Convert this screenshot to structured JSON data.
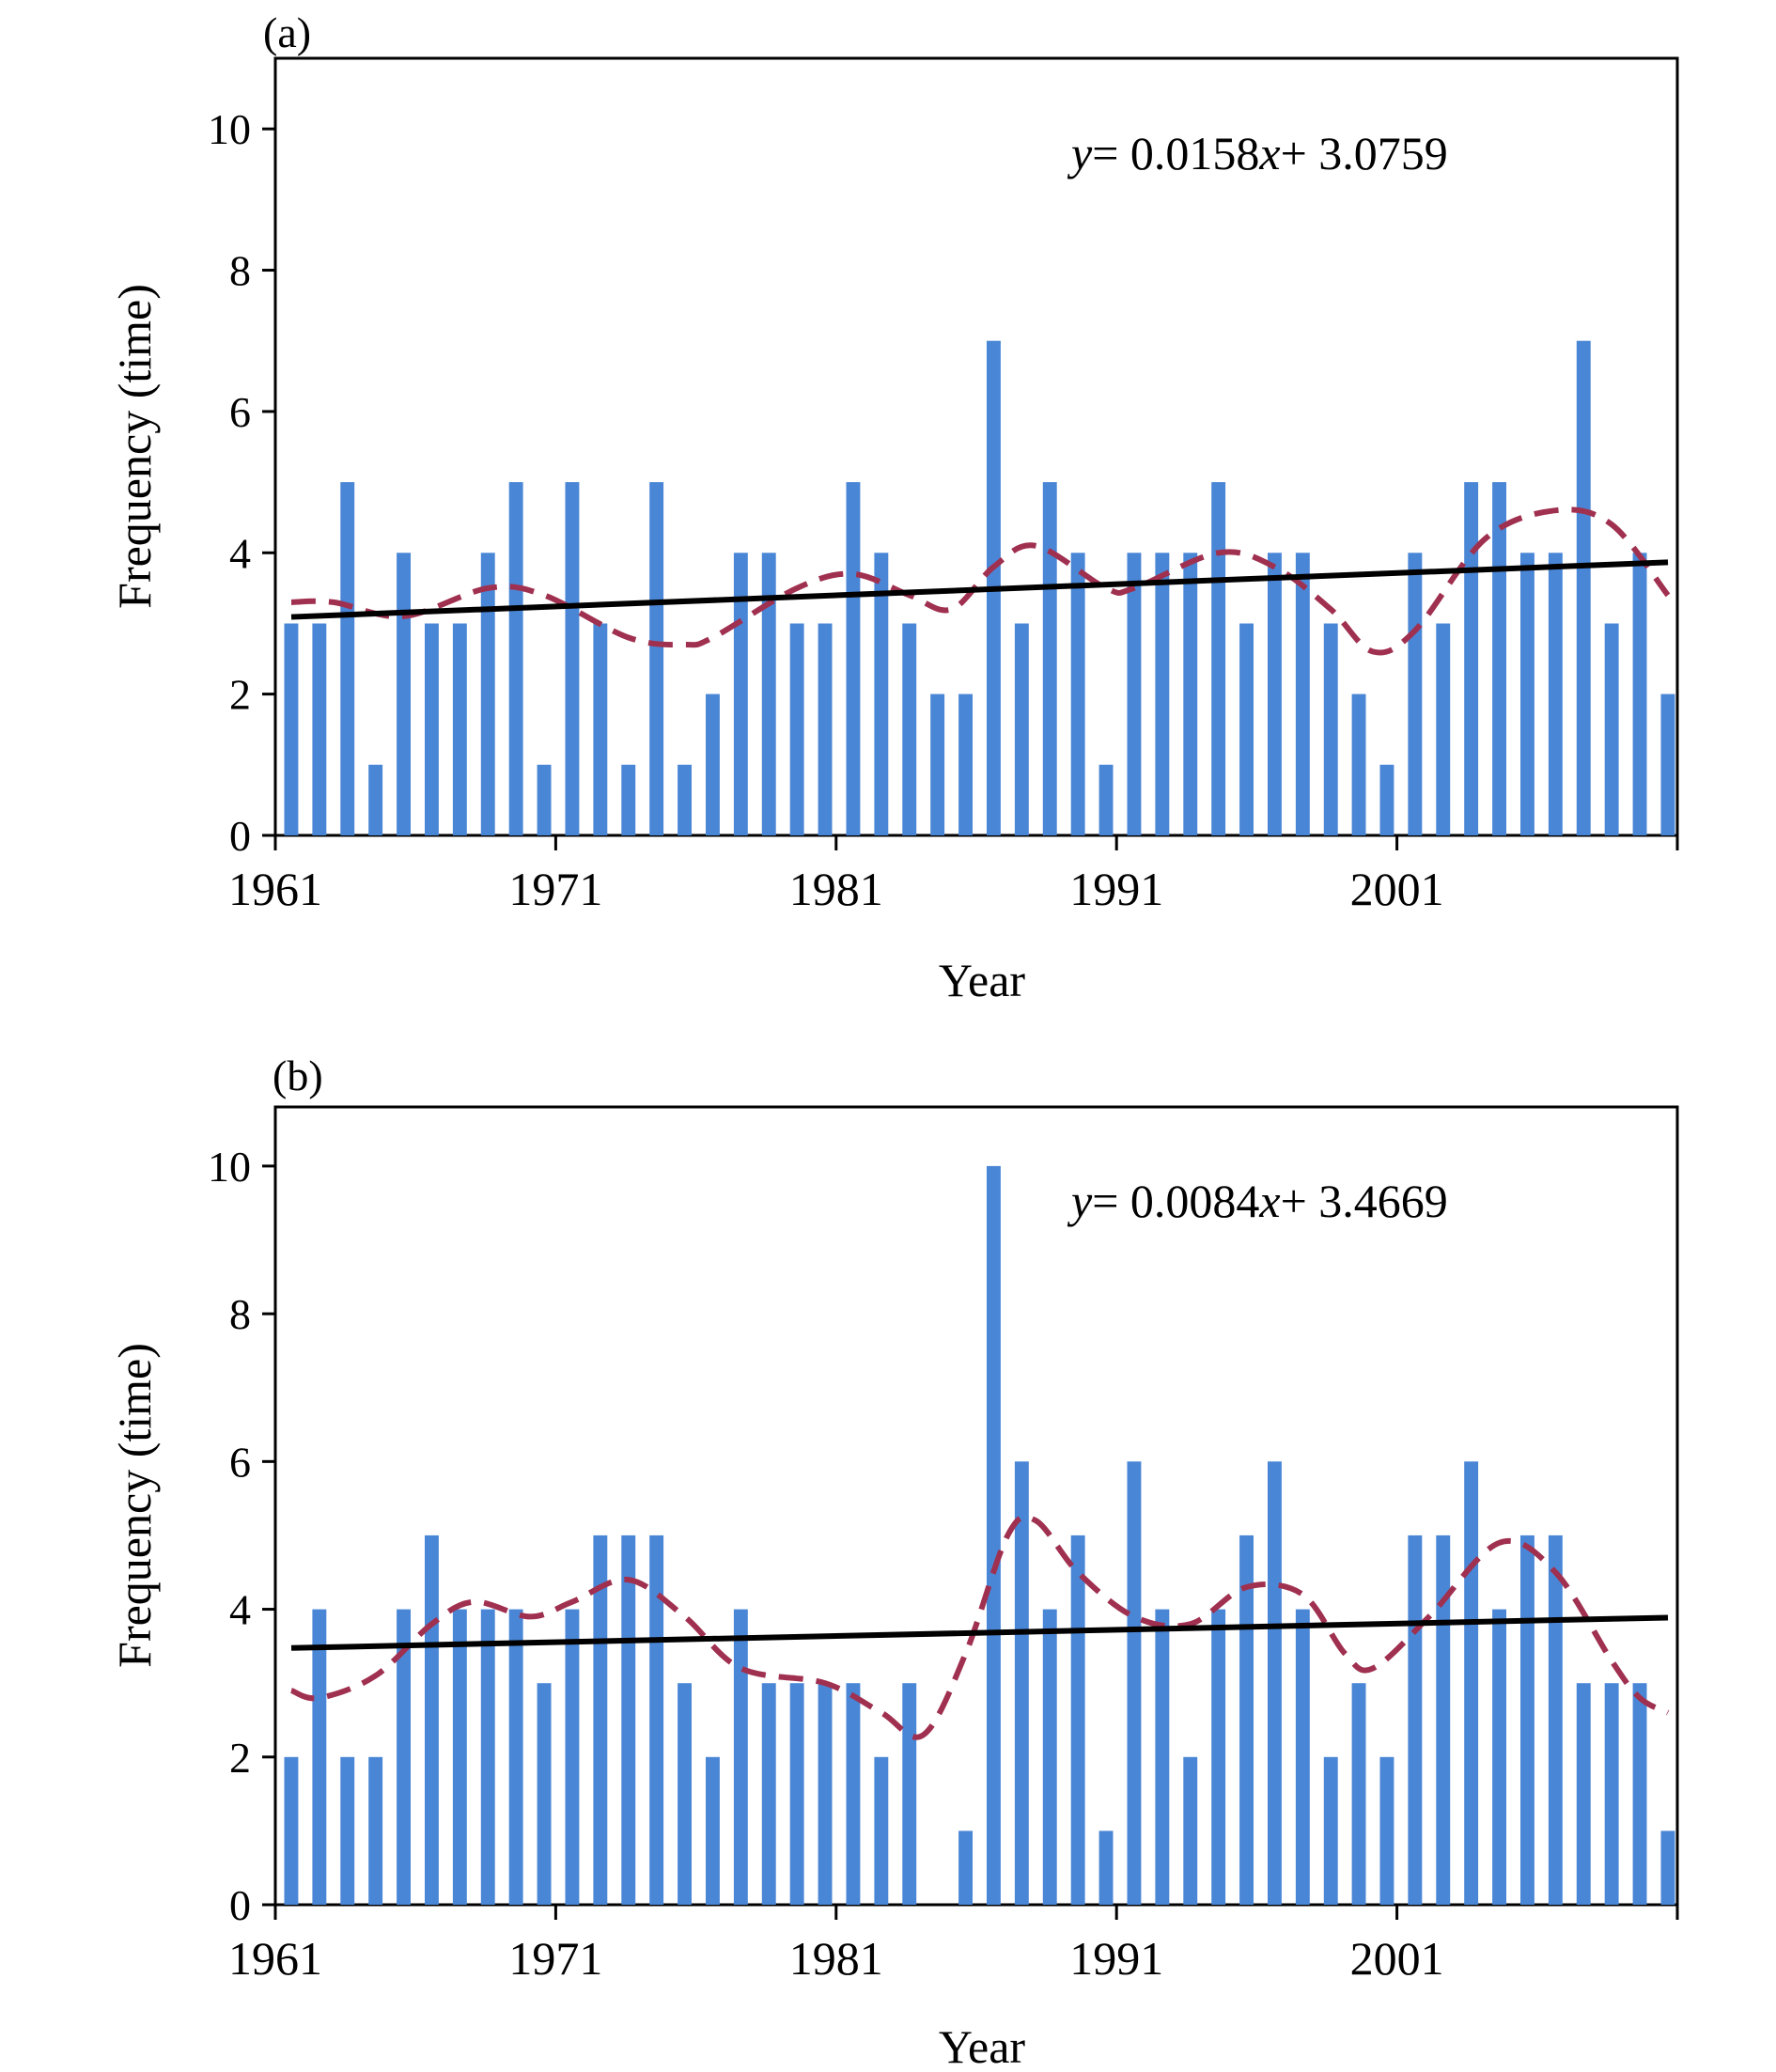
{
  "chart_data": [
    {
      "type": "bar",
      "panel_label": "(a)",
      "xlabel": "Year",
      "ylabel": "Frequency (time)",
      "equation": {
        "y": "y",
        "eq": "= 0.0158",
        "x": "x",
        "rest": "+ 3.0759"
      },
      "trend": {
        "slope": 0.0158,
        "intercept": 3.0759
      },
      "ylim": [
        0,
        11
      ],
      "yticks": [
        0,
        2,
        4,
        6,
        8,
        10
      ],
      "xticks": [
        1961,
        1971,
        1981,
        1991,
        2001
      ],
      "years": [
        1961,
        1962,
        1963,
        1964,
        1965,
        1966,
        1967,
        1968,
        1969,
        1970,
        1971,
        1972,
        1973,
        1974,
        1975,
        1976,
        1977,
        1978,
        1979,
        1980,
        1981,
        1982,
        1983,
        1984,
        1985,
        1986,
        1987,
        1988,
        1989,
        1990,
        1991,
        1992,
        1993,
        1994,
        1995,
        1996,
        1997,
        1998,
        1999,
        2000,
        2001,
        2002,
        2003,
        2004,
        2005,
        2006,
        2007,
        2008,
        2009,
        2010
      ],
      "values": [
        3,
        3,
        5,
        1,
        4,
        3,
        3,
        4,
        5,
        1,
        5,
        3,
        1,
        5,
        1,
        2,
        4,
        4,
        3,
        3,
        5,
        4,
        3,
        2,
        2,
        7,
        3,
        5,
        4,
        1,
        4,
        4,
        4,
        5,
        3,
        4,
        4,
        3,
        2,
        1,
        4,
        3,
        5,
        5,
        4,
        4,
        7,
        3,
        4,
        2
      ],
      "smooth": [
        [
          1961,
          3.3
        ],
        [
          1962.5,
          3.3
        ],
        [
          1965,
          3.1
        ],
        [
          1968,
          3.5
        ],
        [
          1970,
          3.4
        ],
        [
          1973,
          2.8
        ],
        [
          1975,
          2.7
        ],
        [
          1976,
          2.8
        ],
        [
          1979,
          3.5
        ],
        [
          1981,
          3.7
        ],
        [
          1983,
          3.4
        ],
        [
          1984.5,
          3.2
        ],
        [
          1986,
          3.8
        ],
        [
          1987.5,
          4.1
        ],
        [
          1990,
          3.5
        ],
        [
          1991,
          3.5
        ],
        [
          1994,
          4.0
        ],
        [
          1996,
          3.8
        ],
        [
          1998,
          3.2
        ],
        [
          1999.5,
          2.6
        ],
        [
          2001,
          2.9
        ],
        [
          2003.5,
          4.2
        ],
        [
          2006,
          4.6
        ],
        [
          2008,
          4.4
        ],
        [
          2010,
          3.4
        ]
      ],
      "bar_color": "#4a86d6",
      "smooth_color": "#a0304f",
      "trend_color": "#000000"
    },
    {
      "type": "bar",
      "panel_label": "(b)",
      "xlabel": "Year",
      "ylabel": "Frequency (time)",
      "equation": {
        "y": "y",
        "eq": "= 0.0084",
        "x": "x",
        "rest": "+ 3.4669"
      },
      "trend": {
        "slope": 0.0084,
        "intercept": 3.4669
      },
      "ylim": [
        0,
        10.8
      ],
      "yticks": [
        0,
        2,
        4,
        6,
        8,
        10
      ],
      "xticks": [
        1961,
        1971,
        1981,
        1991,
        2001
      ],
      "years": [
        1961,
        1962,
        1963,
        1964,
        1965,
        1966,
        1967,
        1968,
        1969,
        1970,
        1971,
        1972,
        1973,
        1974,
        1975,
        1976,
        1977,
        1978,
        1979,
        1980,
        1981,
        1982,
        1983,
        1984,
        1985,
        1986,
        1987,
        1988,
        1989,
        1990,
        1991,
        1992,
        1993,
        1994,
        1995,
        1996,
        1997,
        1998,
        1999,
        2000,
        2001,
        2002,
        2003,
        2004,
        2005,
        2006,
        2007,
        2008,
        2009,
        2010
      ],
      "values": [
        2,
        4,
        2,
        2,
        4,
        5,
        4,
        4,
        4,
        3,
        4,
        5,
        5,
        5,
        3,
        2,
        4,
        3,
        3,
        3,
        3,
        2,
        3,
        0,
        1,
        10,
        6,
        4,
        5,
        1,
        6,
        4,
        2,
        4,
        5,
        6,
        4,
        2,
        3,
        2,
        5,
        5,
        6,
        4,
        5,
        5,
        3,
        3,
        3,
        1
      ],
      "smooth": [
        [
          1961,
          2.9
        ],
        [
          1962,
          2.8
        ],
        [
          1964,
          3.1
        ],
        [
          1966,
          3.8
        ],
        [
          1967.5,
          4.1
        ],
        [
          1969.5,
          3.9
        ],
        [
          1971,
          4.1
        ],
        [
          1973,
          4.4
        ],
        [
          1975,
          3.9
        ],
        [
          1977,
          3.2
        ],
        [
          1980,
          3.0
        ],
        [
          1982,
          2.6
        ],
        [
          1983.5,
          2.3
        ],
        [
          1985,
          3.4
        ],
        [
          1986.5,
          5.0
        ],
        [
          1987.5,
          5.2
        ],
        [
          1989,
          4.5
        ],
        [
          1991,
          3.9
        ],
        [
          1993,
          3.8
        ],
        [
          1995,
          4.3
        ],
        [
          1997,
          4.2
        ],
        [
          1998.5,
          3.4
        ],
        [
          1999.5,
          3.2
        ],
        [
          2001.5,
          3.9
        ],
        [
          2004,
          4.9
        ],
        [
          2006,
          4.5
        ],
        [
          2008,
          3.3
        ],
        [
          2009,
          2.8
        ],
        [
          2010,
          2.6
        ]
      ],
      "bar_color": "#4a86d6",
      "smooth_color": "#a0304f",
      "trend_color": "#000000"
    }
  ]
}
